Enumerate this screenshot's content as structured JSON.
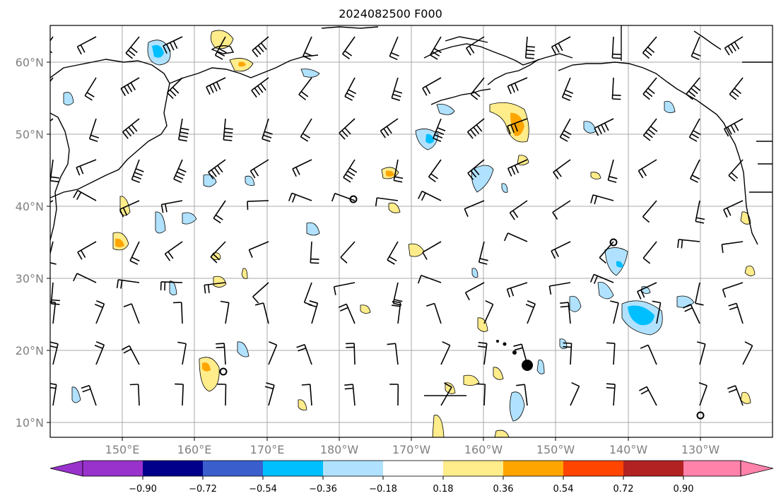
{
  "title": "2024082500 F000",
  "map": {
    "lat_labels": [
      "60°N",
      "50°N",
      "40°N",
      "30°N",
      "20°N",
      "10°N"
    ],
    "lon_labels": [
      "150°E",
      "160°E",
      "170°E",
      "180°W",
      "170°W",
      "160°W",
      "150°W",
      "140°W",
      "130°W"
    ],
    "extent": {
      "lon_min": 140,
      "lon_max": 240,
      "lat_min": 8,
      "lat_max": 65
    }
  },
  "colorbar": {
    "tick_labels": [
      "−0.90",
      "−0.72",
      "−0.54",
      "−0.36",
      "−0.18",
      "0.18",
      "0.36",
      "0.54",
      "0.72",
      "0.90"
    ],
    "colors": [
      "#9932CC",
      "#00008B",
      "#3A5FCD",
      "#00BFFF",
      "#B0E2FF",
      "#FFFFFF",
      "#FFEC8B",
      "#FFA500",
      "#FF4500",
      "#B22222",
      "#FF82AB"
    ],
    "extend": "both"
  },
  "colors": {
    "grid": "#a9a9a9",
    "coast": "#000000",
    "barb": "#000000"
  }
}
